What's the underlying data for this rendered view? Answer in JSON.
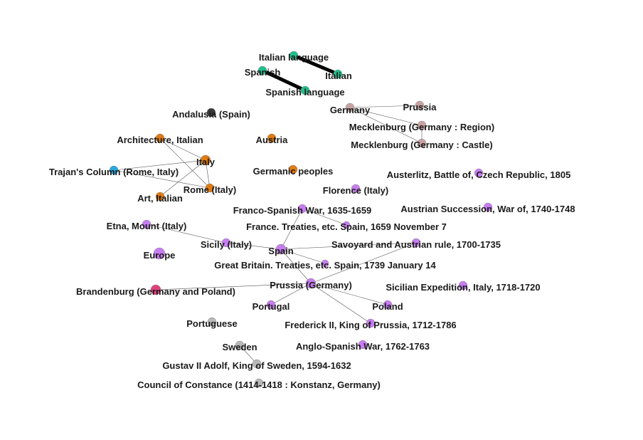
{
  "colors": {
    "teal": "#1fbf8c",
    "dark": "#3a3a3a",
    "rosy": "#c9a3a3",
    "orange": "#e07b12",
    "blue": "#29a8e0",
    "violet": "#c77df0",
    "magenta": "#e0407a",
    "grey": "#b8b8b8",
    "edge": "#555555"
  },
  "nodes": [
    {
      "id": "italian_language",
      "label": "Italian language",
      "color": "teal"
    },
    {
      "id": "italian",
      "label": "Italian",
      "color": "teal"
    },
    {
      "id": "spanish",
      "label": "Spanish",
      "color": "teal"
    },
    {
      "id": "spanish_language",
      "label": "Spanish language",
      "color": "teal"
    },
    {
      "id": "andalusia",
      "label": "Andalusia (Spain)",
      "color": "dark"
    },
    {
      "id": "germany",
      "label": "Germany",
      "color": "rosy"
    },
    {
      "id": "prussia",
      "label": "Prussia",
      "color": "rosy"
    },
    {
      "id": "mecklenburg_region",
      "label": "Mecklenburg (Germany : Region)",
      "color": "rosy"
    },
    {
      "id": "mecklenburg_castle",
      "label": "Mecklenburg (Germany : Castle)",
      "color": "rosy"
    },
    {
      "id": "architecture_italian",
      "label": "Architecture, Italian",
      "color": "orange"
    },
    {
      "id": "austria",
      "label": "Austria",
      "color": "orange"
    },
    {
      "id": "italy",
      "label": "Italy",
      "color": "orange"
    },
    {
      "id": "trajans_column",
      "label": "Trajan's Column (Rome, Italy)",
      "color": "blue"
    },
    {
      "id": "germanic_peoples",
      "label": "Germanic peoples",
      "color": "orange"
    },
    {
      "id": "rome_italy",
      "label": "Rome (Italy)",
      "color": "orange"
    },
    {
      "id": "art_italian",
      "label": "Art, Italian",
      "color": "orange"
    },
    {
      "id": "austerlitz",
      "label": "Austerlitz, Battle of, Czech Republic, 1805",
      "color": "violet"
    },
    {
      "id": "florence",
      "label": "Florence (Italy)",
      "color": "violet"
    },
    {
      "id": "franco_spanish_war",
      "label": "Franco-Spanish War, 1635-1659",
      "color": "violet"
    },
    {
      "id": "austrian_succession",
      "label": "Austrian Succession, War of, 1740-1748",
      "color": "violet"
    },
    {
      "id": "etna",
      "label": "Etna, Mount (Italy)",
      "color": "violet"
    },
    {
      "id": "france_treaties_spain",
      "label": "France. Treaties, etc. Spain, 1659 November 7",
      "color": "violet"
    },
    {
      "id": "sicily",
      "label": "Sicily (Italy)",
      "color": "violet"
    },
    {
      "id": "spain",
      "label": "Spain",
      "color": "violet"
    },
    {
      "id": "savoyard_austrian",
      "label": "Savoyard and Austrian rule, 1700-1735",
      "color": "violet"
    },
    {
      "id": "europe",
      "label": "Europe",
      "color": "violet"
    },
    {
      "id": "gb_treaties_spain",
      "label": "Great Britain. Treaties, etc. Spain, 1739 January 14",
      "color": "violet"
    },
    {
      "id": "brandenburg",
      "label": "Brandenburg (Germany and Poland)",
      "color": "magenta"
    },
    {
      "id": "prussia_germany",
      "label": "Prussia (Germany)",
      "color": "violet"
    },
    {
      "id": "sicilian_expedition",
      "label": "Sicilian Expedition, Italy, 1718-1720",
      "color": "violet"
    },
    {
      "id": "portugal",
      "label": "Portugal",
      "color": "violet"
    },
    {
      "id": "poland",
      "label": "Poland",
      "color": "violet"
    },
    {
      "id": "portuguese",
      "label": "Portuguese",
      "color": "grey"
    },
    {
      "id": "frederick_ii",
      "label": "Frederick II, King of Prussia, 1712-1786",
      "color": "violet"
    },
    {
      "id": "sweden",
      "label": "Sweden",
      "color": "grey"
    },
    {
      "id": "anglo_spanish_war",
      "label": "Anglo-Spanish War, 1762-1763",
      "color": "violet"
    },
    {
      "id": "gustav_ii",
      "label": "Gustav II Adolf, King of Sweden, 1594-1632",
      "color": "grey"
    },
    {
      "id": "council_constance",
      "label": "Council of Constance (1414-1418 : Konstanz, Germany)",
      "color": "grey"
    }
  ],
  "edges": [
    {
      "source": "italian_language",
      "target": "italian",
      "weight": "heavy"
    },
    {
      "source": "spanish",
      "target": "spanish_language",
      "weight": "heavy"
    },
    {
      "source": "germany",
      "target": "prussia",
      "weight": "light"
    },
    {
      "source": "germany",
      "target": "mecklenburg_region",
      "weight": "light"
    },
    {
      "source": "germany",
      "target": "mecklenburg_castle",
      "weight": "light"
    },
    {
      "source": "mecklenburg_region",
      "target": "mecklenburg_castle",
      "weight": "light"
    },
    {
      "source": "architecture_italian",
      "target": "italy",
      "weight": "light"
    },
    {
      "source": "architecture_italian",
      "target": "rome_italy",
      "weight": "light"
    },
    {
      "source": "italy",
      "target": "trajans_column",
      "weight": "light"
    },
    {
      "source": "italy",
      "target": "art_italian",
      "weight": "light"
    },
    {
      "source": "italy",
      "target": "rome_italy",
      "weight": "light"
    },
    {
      "source": "trajans_column",
      "target": "rome_italy",
      "weight": "light"
    },
    {
      "source": "etna",
      "target": "sicily",
      "weight": "light"
    },
    {
      "source": "sicily",
      "target": "spain",
      "weight": "light"
    },
    {
      "source": "franco_spanish_war",
      "target": "france_treaties_spain",
      "weight": "light"
    },
    {
      "source": "spain",
      "target": "franco_spanish_war",
      "weight": "light"
    },
    {
      "source": "spain",
      "target": "savoyard_austrian",
      "weight": "light"
    },
    {
      "source": "spain",
      "target": "gb_treaties_spain",
      "weight": "light"
    },
    {
      "source": "spain",
      "target": "prussia_germany",
      "weight": "light"
    },
    {
      "source": "prussia_germany",
      "target": "savoyard_austrian",
      "weight": "light"
    },
    {
      "source": "prussia_germany",
      "target": "brandenburg",
      "weight": "light"
    },
    {
      "source": "prussia_germany",
      "target": "portugal",
      "weight": "light"
    },
    {
      "source": "prussia_germany",
      "target": "poland",
      "weight": "light"
    },
    {
      "source": "prussia_germany",
      "target": "frederick_ii",
      "weight": "light"
    },
    {
      "source": "sweden",
      "target": "gustav_ii",
      "weight": "light"
    }
  ]
}
